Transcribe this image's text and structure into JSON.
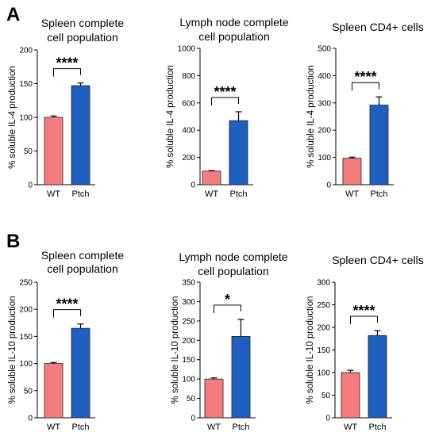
{
  "panels": [
    {
      "letter": "A"
    },
    {
      "letter": "B"
    }
  ],
  "colors": {
    "wt": "#F47C7C",
    "ptch": "#1F5FBF",
    "axis": "#000000"
  },
  "chart_data": [
    {
      "type": "bar",
      "panel": "A",
      "title_lines": [
        "Spleen complete",
        "cell population"
      ],
      "ylabel": "% soluble IL-4 production",
      "categories": [
        "WT",
        "Ptch"
      ],
      "values": [
        100,
        147
      ],
      "errors": [
        2,
        4
      ],
      "ylim": [
        0,
        200
      ],
      "yticks": [
        0,
        50,
        100,
        150,
        200
      ],
      "significance": "****"
    },
    {
      "type": "bar",
      "panel": "A",
      "title_lines": [
        "Lymph node complete",
        "cell population"
      ],
      "ylabel": "% soluble IL-4 production",
      "categories": [
        "WT",
        "Ptch"
      ],
      "values": [
        100,
        470
      ],
      "errors": [
        3,
        65
      ],
      "ylim": [
        0,
        1000
      ],
      "yticks": [
        0,
        200,
        400,
        600,
        800,
        1000
      ],
      "significance": "****"
    },
    {
      "type": "bar",
      "panel": "A",
      "title_lines": [
        "Spleen CD4+ cells"
      ],
      "ylabel": "% soluble IL-4 production",
      "categories": [
        "WT",
        "Ptch"
      ],
      "values": [
        97,
        292
      ],
      "errors": [
        4,
        30
      ],
      "ylim": [
        0,
        500
      ],
      "yticks": [
        0,
        100,
        200,
        300,
        400,
        500
      ],
      "significance": "****"
    },
    {
      "type": "bar",
      "panel": "B",
      "title_lines": [
        "Spleen complete",
        "cell population"
      ],
      "ylabel": "% soluble IL-10 production",
      "categories": [
        "WT",
        "Ptch"
      ],
      "values": [
        100,
        165
      ],
      "errors": [
        2,
        8
      ],
      "ylim": [
        0,
        250
      ],
      "yticks": [
        0,
        50,
        100,
        150,
        200,
        250
      ],
      "significance": "****"
    },
    {
      "type": "bar",
      "panel": "B",
      "title_lines": [
        "Lymph node complete",
        "cell population"
      ],
      "ylabel": "% soluble IL-10 production",
      "categories": [
        "WT",
        "Ptch"
      ],
      "values": [
        100,
        210
      ],
      "errors": [
        3,
        44
      ],
      "ylim": [
        0,
        350
      ],
      "yticks": [
        0,
        50,
        100,
        150,
        200,
        250,
        300,
        350
      ],
      "significance": "*"
    },
    {
      "type": "bar",
      "panel": "B",
      "title_lines": [
        "Spleen CD4+ cells"
      ],
      "ylabel": "% soluble IL-10 production",
      "categories": [
        "WT",
        "Ptch"
      ],
      "values": [
        100,
        182
      ],
      "errors": [
        5,
        11
      ],
      "ylim": [
        0,
        300
      ],
      "yticks": [
        0,
        50,
        100,
        150,
        200,
        250,
        300
      ],
      "significance": "****"
    }
  ]
}
